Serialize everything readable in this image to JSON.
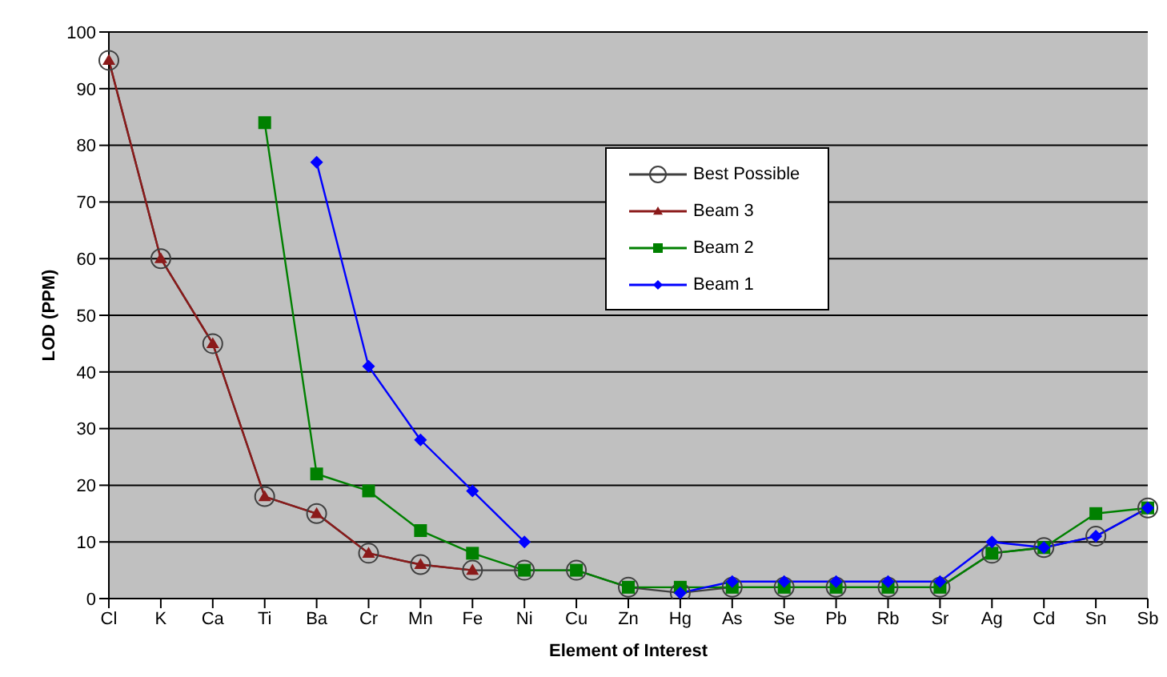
{
  "chart_data": {
    "type": "line",
    "xlabel": "Element of Interest",
    "ylabel": "LOD (PPM)",
    "categories": [
      "Cl",
      "K",
      "Ca",
      "Ti",
      "Ba",
      "Cr",
      "Mn",
      "Fe",
      "Ni",
      "Cu",
      "Zn",
      "Hg",
      "As",
      "Se",
      "Pb",
      "Rb",
      "Sr",
      "Ag",
      "Cd",
      "Sn",
      "Sb"
    ],
    "series": [
      {
        "name": "Best Possible",
        "color": "#404040",
        "marker": "circle",
        "values": [
          95,
          60,
          45,
          18,
          15,
          8,
          6,
          5,
          5,
          5,
          2,
          1,
          2,
          2,
          2,
          2,
          2,
          8,
          9,
          11,
          16
        ]
      },
      {
        "name": "Beam 3",
        "color": "#8b1a1a",
        "marker": "triangle",
        "values": [
          95,
          60,
          45,
          18,
          15,
          8,
          6,
          5,
          null,
          null,
          null,
          null,
          null,
          null,
          null,
          null,
          null,
          null,
          null,
          null,
          null
        ]
      },
      {
        "name": "Beam 2",
        "color": "#008000",
        "marker": "square",
        "values": [
          null,
          null,
          null,
          84,
          22,
          19,
          12,
          8,
          5,
          5,
          2,
          2,
          2,
          2,
          2,
          2,
          2,
          8,
          9,
          15,
          16
        ]
      },
      {
        "name": "Beam 1",
        "color": "#0000ff",
        "marker": "diamond",
        "values": [
          null,
          null,
          null,
          null,
          77,
          41,
          28,
          19,
          10,
          null,
          null,
          1,
          3,
          3,
          3,
          3,
          3,
          10,
          9,
          11,
          16
        ]
      }
    ],
    "ylim": [
      0,
      100
    ],
    "yticks": [
      0,
      10,
      20,
      30,
      40,
      50,
      60,
      70,
      80,
      90,
      100
    ],
    "grid": "y",
    "legend": "top"
  }
}
